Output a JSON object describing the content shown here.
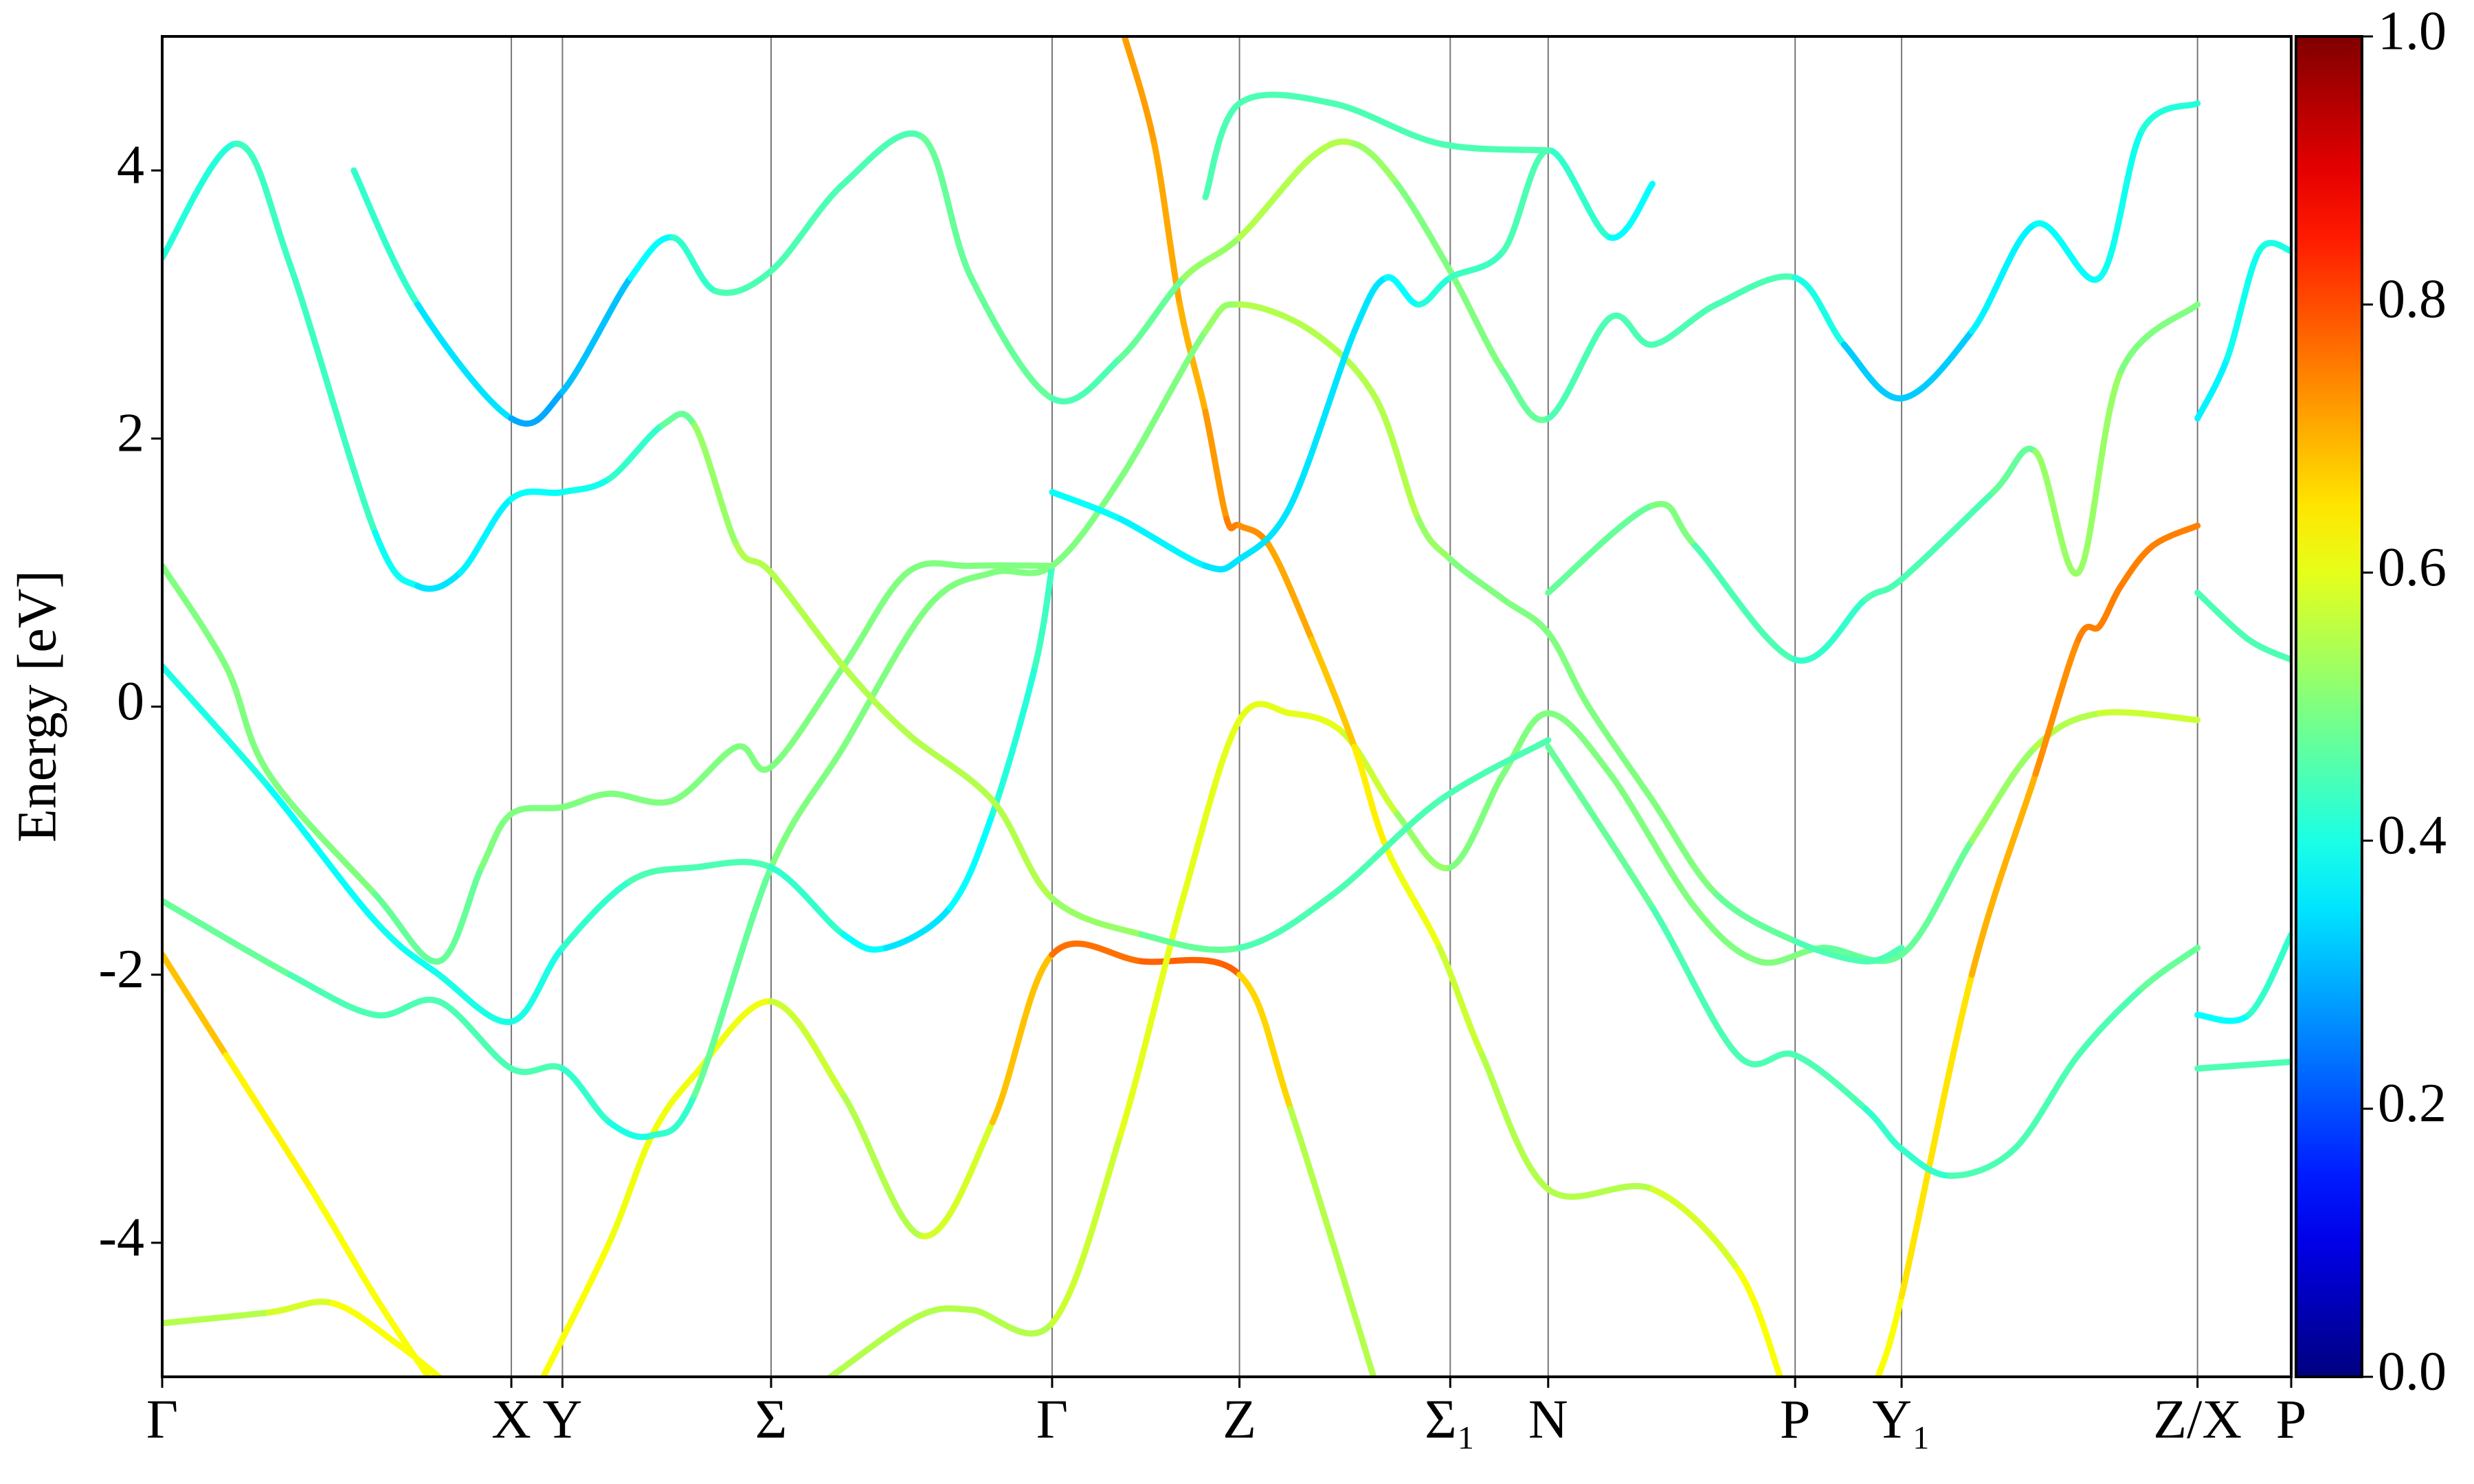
{
  "chart_data": {
    "type": "band-structure",
    "y_label": "Energy [eV]",
    "xlim": [
      0,
      1
    ],
    "ylim": [
      -5,
      5
    ],
    "yticks": [
      -4,
      -2,
      0,
      2,
      4
    ],
    "xticks": [
      {
        "value": 0,
        "label": "Γ"
      },
      {
        "value": 0.164,
        "label": "X"
      },
      {
        "value": 0.188,
        "label": "Y"
      },
      {
        "value": 0.286,
        "label": "Σ"
      },
      {
        "value": 0.418,
        "label": "Γ"
      },
      {
        "value": 0.506,
        "label": "Z"
      },
      {
        "value": 0.605,
        "label": "Σ₁"
      },
      {
        "value": 0.651,
        "label": "N"
      },
      {
        "value": 0.767,
        "label": "P"
      },
      {
        "value": 0.817,
        "label": "Y₁"
      },
      {
        "value": 0.956,
        "label": "Z/X"
      },
      {
        "value": 1,
        "label": "P"
      }
    ],
    "grid": "x",
    "colormap": "jet",
    "colorbar": {
      "range": [
        0,
        1
      ],
      "ticks": [
        {
          "value": 0,
          "label": "0.0"
        },
        {
          "value": 0.2,
          "label": "0.2"
        },
        {
          "value": 0.4,
          "label": "0.4"
        },
        {
          "value": 0.6,
          "label": "0.6"
        },
        {
          "value": 0.8,
          "label": "0.8"
        },
        {
          "value": 1,
          "label": "1.0"
        }
      ]
    },
    "series": [
      {
        "x": [
          0,
          0.03,
          0.07,
          0.1,
          0.125
        ],
        "values": [
          -1.85,
          -2.6,
          -3.6,
          -4.4,
          -5
        ],
        "weights": [
          0.72,
          0.65,
          0.62,
          0.62,
          0.62
        ]
      },
      {
        "x": [
          0.179,
          0.21,
          0.23,
          0.25,
          0.286,
          0.32,
          0.357,
          0.39,
          0.418,
          0.46,
          0.506,
          0.53,
          0.569
        ],
        "values": [
          -5,
          -4.0,
          -3.2,
          -2.75,
          -2.2,
          -2.9,
          -3.95,
          -3.1,
          -1.85,
          -1.9,
          -2.0,
          -3.0,
          -5
        ],
        "weights": [
          0.62,
          0.62,
          0.6,
          0.62,
          0.6,
          0.55,
          0.55,
          0.62,
          0.75,
          0.78,
          0.78,
          0.55,
          0.55
        ]
      },
      {
        "x": [
          0,
          0.05,
          0.08,
          0.11,
          0.13
        ],
        "values": [
          -4.6,
          -4.52,
          -4.45,
          -4.75,
          -5
        ],
        "weights": [
          0.55,
          0.55,
          0.62,
          0.62,
          0.62
        ]
      },
      {
        "x": [
          0.314,
          0.355,
          0.38,
          0.418,
          0.45,
          0.48,
          0.506,
          0.53,
          0.555,
          0.58,
          0.605,
          0.63,
          0.651,
          0.68,
          0.72,
          0.75,
          0.78,
          0.817,
          0.85,
          0.88,
          0.91,
          0.956
        ],
        "values": [
          -5,
          -4.55,
          -4.5,
          -4.6,
          -3.2,
          -1.4,
          -0.1,
          -0.05,
          -0.2,
          -0.8,
          -1.2,
          -0.5,
          -0.05,
          -0.5,
          -1.5,
          -1.9,
          -1.8,
          -1.85,
          -1.0,
          -0.3,
          -0.05,
          -0.1
        ],
        "weights": [
          0.55,
          0.55,
          0.55,
          0.55,
          0.6,
          0.6,
          0.6,
          0.6,
          0.6,
          0.55,
          0.5,
          0.5,
          0.5,
          0.5,
          0.5,
          0.5,
          0.5,
          0.45,
          0.5,
          0.55,
          0.55,
          0.6
        ]
      },
      {
        "x": [
          0.806,
          0.817,
          0.85,
          0.88,
          0.9,
          0.91,
          0.92,
          0.935,
          0.956
        ],
        "values": [
          -5,
          -4.4,
          -2.0,
          -0.5,
          0.5,
          0.6,
          0.9,
          1.2,
          1.35
        ],
        "weights": [
          0.62,
          0.62,
          0.68,
          0.72,
          0.75,
          0.75,
          0.75,
          0.75,
          0.75
        ]
      },
      {
        "x": [
          0.452,
          0.466,
          0.478,
          0.49,
          0.5,
          0.506,
          0.52,
          0.54,
          0.56,
          0.575,
          0.6,
          0.62,
          0.651,
          0.7,
          0.74,
          0.76
        ],
        "values": [
          5,
          4.2,
          3.0,
          2.2,
          1.4,
          1.35,
          1.2,
          0.5,
          -0.3,
          -1.05,
          -1.8,
          -2.6,
          -3.6,
          -3.6,
          -4.2,
          -5
        ],
        "weights": [
          0.72,
          0.72,
          0.7,
          0.7,
          0.75,
          0.75,
          0.72,
          0.7,
          0.66,
          0.62,
          0.6,
          0.55,
          0.55,
          0.55,
          0.62,
          0.62
        ]
      },
      {
        "x": [
          0,
          0.06,
          0.1,
          0.13,
          0.164,
          0.188,
          0.21,
          0.23,
          0.25,
          0.286,
          0.32,
          0.36,
          0.39,
          0.418,
          0.45,
          0.49,
          0.506,
          0.54,
          0.57,
          0.59,
          0.605,
          0.63,
          0.651,
          0.67,
          0.7,
          0.73,
          0.767,
          0.8,
          0.817
        ],
        "values": [
          -1.45,
          -2.0,
          -2.3,
          -2.2,
          -2.7,
          -2.7,
          -3.1,
          -3.2,
          -2.9,
          -1.2,
          -0.3,
          0.75,
          1.0,
          1.05,
          1.7,
          2.8,
          3.0,
          2.8,
          2.3,
          1.4,
          1.1,
          0.8,
          0.55,
          0.0,
          -0.7,
          -1.4,
          -1.75,
          -1.9,
          -1.8
        ],
        "weights": [
          0.5,
          0.45,
          0.45,
          0.45,
          0.45,
          0.45,
          0.4,
          0.4,
          0.45,
          0.5,
          0.5,
          0.5,
          0.5,
          0.5,
          0.5,
          0.5,
          0.55,
          0.55,
          0.55,
          0.55,
          0.5,
          0.5,
          0.5,
          0.5,
          0.5,
          0.5,
          0.45,
          0.45,
          0.45
        ]
      },
      {
        "x": [
          0,
          0.05,
          0.1,
          0.13,
          0.164,
          0.188,
          0.22,
          0.25,
          0.286,
          0.32,
          0.34,
          0.37,
          0.39,
          0.41,
          0.418
        ],
        "values": [
          0.3,
          -0.6,
          -1.6,
          -2.0,
          -2.35,
          -1.8,
          -1.3,
          -1.2,
          -1.2,
          -1.7,
          -1.8,
          -1.5,
          -0.8,
          0.3,
          1.05
        ],
        "weights": [
          0.42,
          0.38,
          0.38,
          0.4,
          0.4,
          0.4,
          0.45,
          0.45,
          0.45,
          0.4,
          0.35,
          0.35,
          0.4,
          0.42,
          0.45
        ]
      },
      {
        "x": [
          0,
          0.03,
          0.05,
          0.1,
          0.13,
          0.15,
          0.164,
          0.188,
          0.21,
          0.24,
          0.27,
          0.286,
          0.32,
          0.35,
          0.38,
          0.418
        ],
        "values": [
          1.05,
          0.3,
          -0.5,
          -1.4,
          -1.9,
          -1.2,
          -0.8,
          -0.75,
          -0.65,
          -0.7,
          -0.3,
          -0.45,
          0.3,
          1.0,
          1.05,
          1.05
        ],
        "weights": [
          0.5,
          0.5,
          0.5,
          0.5,
          0.45,
          0.5,
          0.5,
          0.5,
          0.5,
          0.5,
          0.5,
          0.5,
          0.5,
          0.5,
          0.5,
          0.5
        ]
      },
      {
        "x": [
          0,
          0.035,
          0.06,
          0.1,
          0.12,
          0.14,
          0.164,
          0.188,
          0.21,
          0.235,
          0.25,
          0.27,
          0.286,
          0.32,
          0.35,
          0.39,
          0.418,
          0.46,
          0.506,
          0.55,
          0.6,
          0.651
        ],
        "values": [
          3.35,
          4.2,
          3.3,
          1.3,
          0.9,
          1.0,
          1.55,
          1.6,
          1.7,
          2.1,
          2.1,
          1.2,
          1.0,
          0.3,
          -0.2,
          -0.7,
          -1.43,
          -1.7,
          -1.8,
          -1.4,
          -0.7,
          -0.25
        ],
        "weights": [
          0.4,
          0.42,
          0.45,
          0.42,
          0.35,
          0.35,
          0.38,
          0.38,
          0.4,
          0.45,
          0.5,
          0.55,
          0.55,
          0.55,
          0.55,
          0.55,
          0.55,
          0.5,
          0.45,
          0.45,
          0.45,
          0.45
        ]
      },
      {
        "x": [
          0.09,
          0.12,
          0.164,
          0.188,
          0.22,
          0.24,
          0.26,
          0.286,
          0.32,
          0.357,
          0.38,
          0.418,
          0.45,
          0.48,
          0.506,
          0.54,
          0.56,
          0.58,
          0.605,
          0.63,
          0.651,
          0.68,
          0.7,
          0.73,
          0.767,
          0.79,
          0.817,
          0.85,
          0.88,
          0.91,
          0.93,
          0.956
        ],
        "values": [
          4.0,
          3.0,
          2.15,
          2.35,
          3.2,
          3.5,
          3.1,
          3.25,
          3.9,
          4.25,
          3.2,
          2.3,
          2.6,
          3.2,
          3.5,
          4.1,
          4.2,
          3.9,
          3.25,
          2.5,
          2.15,
          2.9,
          2.7,
          3.0,
          3.2,
          2.7,
          2.3,
          2.8,
          3.6,
          3.2,
          4.3,
          4.5
        ],
        "weights": [
          0.45,
          0.4,
          0.3,
          0.28,
          0.35,
          0.4,
          0.45,
          0.45,
          0.45,
          0.45,
          0.5,
          0.45,
          0.45,
          0.5,
          0.55,
          0.55,
          0.55,
          0.5,
          0.5,
          0.5,
          0.45,
          0.45,
          0.45,
          0.45,
          0.45,
          0.35,
          0.3,
          0.35,
          0.38,
          0.38,
          0.4,
          0.42
        ]
      },
      {
        "x": [
          0.418,
          0.45,
          0.49,
          0.506,
          0.53,
          0.56,
          0.575,
          0.59,
          0.605,
          0.63,
          0.651,
          0.68,
          0.7
        ],
        "values": [
          1.6,
          1.4,
          1.05,
          1.1,
          1.5,
          2.8,
          3.2,
          3.0,
          3.2,
          3.4,
          4.15,
          3.5,
          3.9
        ],
        "weights": [
          0.38,
          0.38,
          0.35,
          0.35,
          0.35,
          0.35,
          0.35,
          0.4,
          0.42,
          0.45,
          0.45,
          0.4,
          0.35
        ]
      },
      {
        "x": [
          0.49,
          0.506,
          0.55,
          0.6,
          0.651
        ],
        "values": [
          3.8,
          4.5,
          4.5,
          4.2,
          4.15
        ],
        "weights": [
          0.45,
          0.45,
          0.45,
          0.45,
          0.45
        ]
      },
      {
        "x": [
          0.651,
          0.7,
          0.74,
          0.767,
          0.8,
          0.817,
          0.84,
          0.87,
          0.9,
          0.93,
          0.956
        ],
        "values": [
          -0.3,
          -1.5,
          -2.6,
          -2.6,
          -3.0,
          -3.3,
          -3.5,
          -3.3,
          -2.6,
          -2.1,
          -1.8
        ],
        "weights": [
          0.5,
          0.45,
          0.45,
          0.45,
          0.45,
          0.4,
          0.45,
          0.45,
          0.45,
          0.45,
          0.5
        ]
      },
      {
        "x": [
          0.956,
          0.97,
          0.985,
          1
        ],
        "values": [
          2.15,
          2.6,
          3.4,
          3.4
        ],
        "weights": [
          0.35,
          0.38,
          0.4,
          0.4
        ]
      },
      {
        "x": [
          0.956,
          0.98,
          1
        ],
        "values": [
          -2.3,
          -2.3,
          -1.7
        ],
        "weights": [
          0.35,
          0.4,
          0.45
        ]
      },
      {
        "x": [
          0.956,
          0.98,
          1
        ],
        "values": [
          0.85,
          0.5,
          0.35
        ],
        "weights": [
          0.45,
          0.45,
          0.45
        ]
      },
      {
        "x": [
          0.956,
          1
        ],
        "values": [
          -2.7,
          -2.65
        ],
        "weights": [
          0.45,
          0.45
        ]
      },
      {
        "x": [
          0.651,
          0.7,
          0.72,
          0.767,
          0.8,
          0.817,
          0.86,
          0.88,
          0.9,
          0.92,
          0.956
        ],
        "values": [
          0.85,
          1.5,
          1.2,
          0.35,
          0.8,
          0.95,
          1.6,
          1.9,
          1.0,
          2.5,
          3.0
        ],
        "weights": [
          0.45,
          0.5,
          0.5,
          0.4,
          0.45,
          0.45,
          0.45,
          0.5,
          0.55,
          0.5,
          0.5
        ]
      }
    ]
  }
}
